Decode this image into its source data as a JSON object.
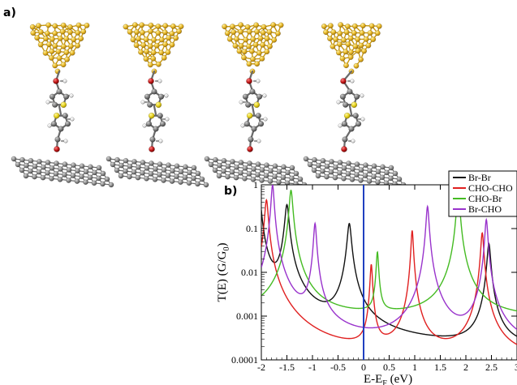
{
  "figure": {
    "panel_a_label": "a)",
    "panel_b_label": "b)"
  },
  "molecules": [
    {
      "id": "m1"
    },
    {
      "id": "m2"
    },
    {
      "id": "m3"
    },
    {
      "id": "m4"
    }
  ],
  "colors": {
    "gold": "#e8b82a",
    "gold_dark": "#b88a10",
    "graphene": "#8a8a8a",
    "carbon": "#7f7f7f",
    "sulfur": "#e6d21e",
    "oxygen": "#c01818",
    "hydrogen": "#e8e8e8",
    "fermi_line": "#2040c0"
  },
  "chart_data": {
    "type": "line",
    "title": "",
    "xlabel": "E-E",
    "xlabel_sub": "F",
    "xlabel_unit": " (eV)",
    "ylabel": "T(E) (G/G",
    "ylabel_sub": "0",
    "ylabel_end": ")",
    "yscale": "log",
    "xlim": [
      -2,
      3
    ],
    "ylim": [
      0.0001,
      1
    ],
    "x_ticks": [
      "-2",
      "-1.5",
      "-1",
      "-0.5",
      "0",
      "0.5",
      "1",
      "1.5",
      "2",
      "2.5",
      "3"
    ],
    "y_ticks": [
      "0.0001",
      "0.001",
      "0.01",
      "0.1",
      "1"
    ],
    "fermi_level": 0,
    "legend_position": "top-right",
    "series": [
      {
        "name": "Br-Br",
        "color": "#111111",
        "base": 0.00014,
        "peaks": [
          [
            -2.05,
            0.03,
            1.0
          ],
          [
            -1.5,
            0.035,
            0.35
          ],
          [
            -0.28,
            0.035,
            0.13
          ],
          [
            2.45,
            0.03,
            0.045
          ]
        ]
      },
      {
        "name": "CHO-CHO",
        "color": "#e02020",
        "base": 9e-05,
        "peaks": [
          [
            -1.9,
            0.03,
            0.45
          ],
          [
            0.15,
            0.02,
            0.015
          ],
          [
            0.95,
            0.02,
            0.09
          ],
          [
            2.32,
            0.025,
            0.08
          ]
        ]
      },
      {
        "name": "CHO-Br",
        "color": "#44bb22",
        "base": 0.0009,
        "peaks": [
          [
            -1.42,
            0.03,
            0.75
          ],
          [
            0.27,
            0.02,
            0.028
          ],
          [
            1.85,
            0.025,
            0.8
          ]
        ]
      },
      {
        "name": "Br-CHO",
        "color": "#9933cc",
        "base": 0.00012,
        "peaks": [
          [
            -1.78,
            0.025,
            1.0
          ],
          [
            -0.95,
            0.025,
            0.13
          ],
          [
            1.25,
            0.025,
            0.32
          ],
          [
            2.4,
            0.025,
            0.16
          ]
        ]
      }
    ]
  }
}
